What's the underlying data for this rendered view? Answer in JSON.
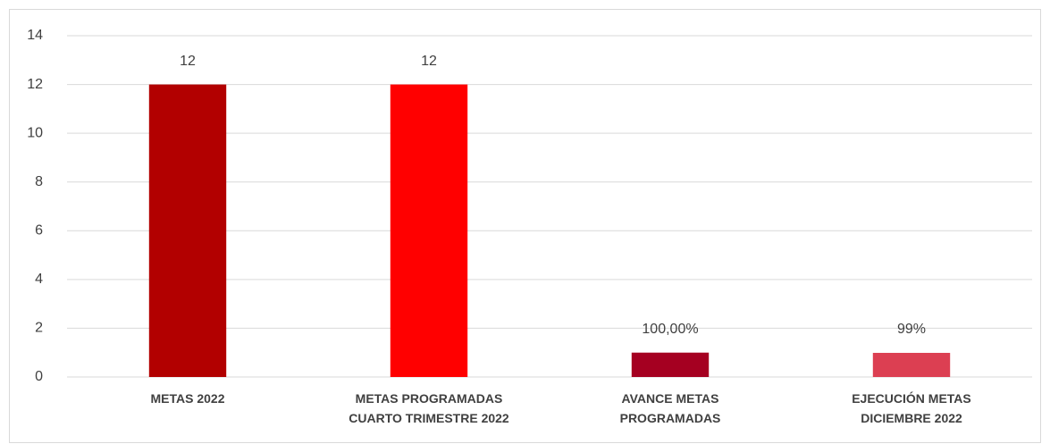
{
  "chart_data": {
    "type": "bar",
    "categories": [
      "METAS 2022",
      "METAS PROGRAMADAS CUARTO TRIMESTRE 2022",
      "AVANCE METAS PROGRAMADAS",
      "EJECUCIÓN METAS DICIEMBRE 2022"
    ],
    "values": [
      12,
      12,
      1,
      0.99
    ],
    "value_labels": [
      "12",
      "12",
      "100,00%",
      "99%"
    ],
    "colors": [
      "#b20000",
      "#ff0000",
      "#a50021",
      "#dc3f52"
    ],
    "ylim": [
      0,
      14
    ],
    "yticks": [
      0,
      2,
      4,
      6,
      8,
      10,
      12,
      14
    ],
    "grid": true
  }
}
